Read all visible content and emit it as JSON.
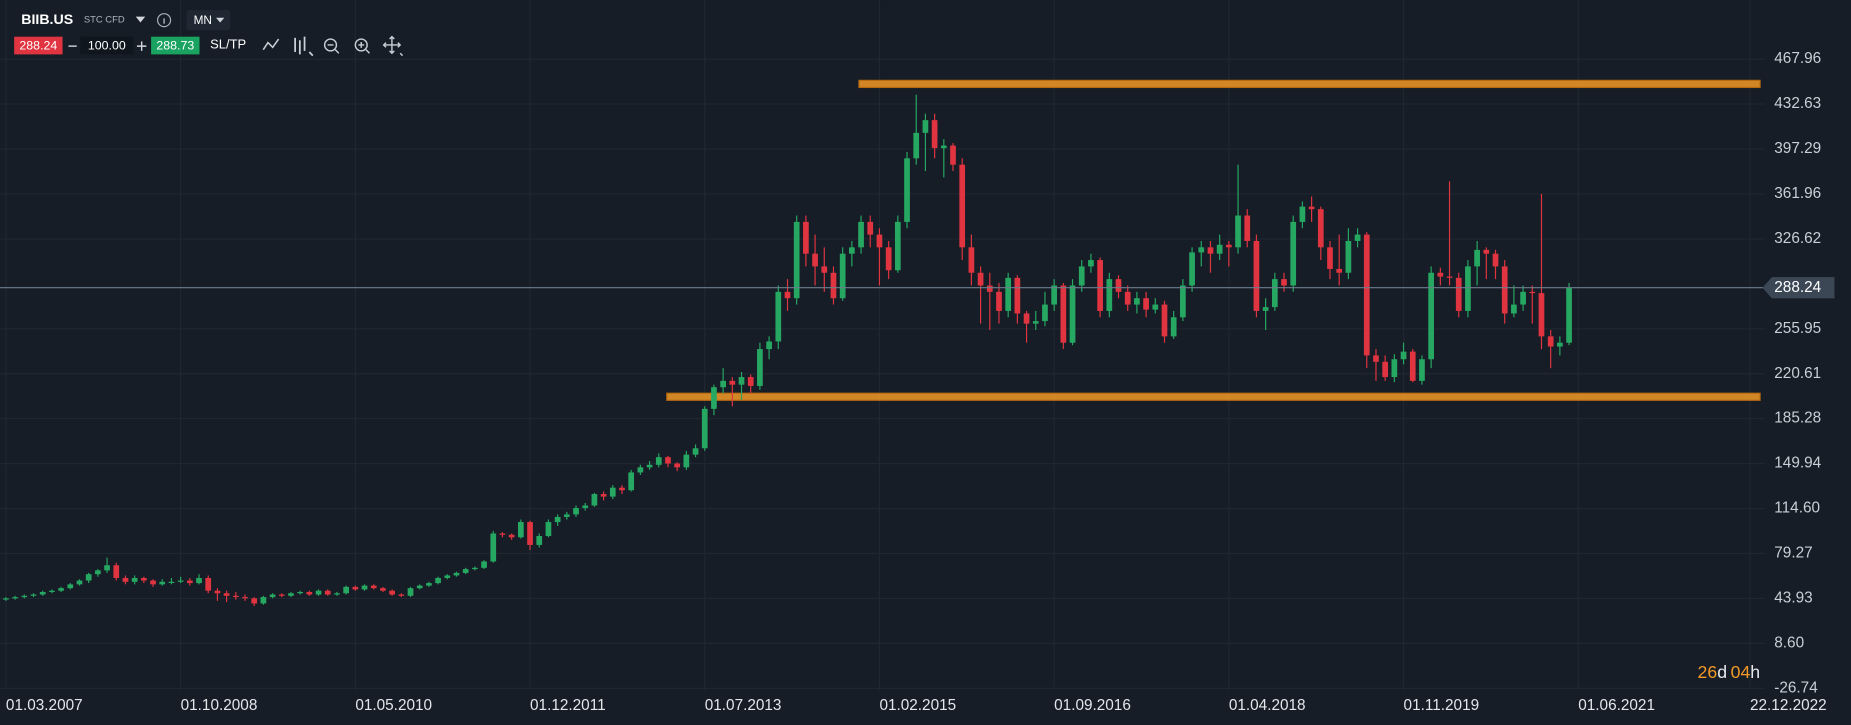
{
  "header": {
    "symbol": "BIIB.US",
    "instrument_type": "STC CFD",
    "timeframe": "MN",
    "sell_price": "288.24",
    "volume": "100.00",
    "buy_price": "288.73",
    "sltp": "SL/TP"
  },
  "countdown": [
    "26",
    "d",
    "04",
    "h"
  ],
  "chart_data": {
    "type": "candlestick",
    "up_color": "#26a862",
    "down_color": "#e03440",
    "x": [
      "01.03.2007",
      "01.04.2007",
      "01.05.2007",
      "01.06.2007",
      "01.07.2007",
      "01.08.2007",
      "01.09.2007",
      "01.10.2007",
      "01.11.2007",
      "01.12.2007",
      "01.01.2008",
      "01.02.2008",
      "01.03.2008",
      "01.04.2008",
      "01.05.2008",
      "01.06.2008",
      "01.07.2008",
      "01.08.2008",
      "01.09.2008",
      "01.10.2008",
      "01.11.2008",
      "01.12.2008",
      "01.01.2009",
      "01.02.2009",
      "01.03.2009",
      "01.04.2009",
      "01.05.2009",
      "01.06.2009",
      "01.07.2009",
      "01.08.2009",
      "01.09.2009",
      "01.10.2009",
      "01.11.2009",
      "01.12.2009",
      "01.01.2010",
      "01.02.2010",
      "01.03.2010",
      "01.04.2010",
      "01.05.2010",
      "01.06.2010",
      "01.07.2010",
      "01.08.2010",
      "01.09.2010",
      "01.10.2010",
      "01.11.2010",
      "01.12.2010",
      "01.01.2011",
      "01.02.2011",
      "01.03.2011",
      "01.04.2011",
      "01.05.2011",
      "01.06.2011",
      "01.07.2011",
      "01.08.2011",
      "01.09.2011",
      "01.10.2011",
      "01.11.2011",
      "01.12.2011",
      "01.01.2012",
      "01.02.2012",
      "01.03.2012",
      "01.04.2012",
      "01.05.2012",
      "01.06.2012",
      "01.07.2012",
      "01.08.2012",
      "01.09.2012",
      "01.10.2012",
      "01.11.2012",
      "01.12.2012",
      "01.01.2013",
      "01.02.2013",
      "01.03.2013",
      "01.04.2013",
      "01.05.2013",
      "01.06.2013",
      "01.07.2013",
      "01.08.2013",
      "01.09.2013",
      "01.10.2013",
      "01.11.2013",
      "01.12.2013",
      "01.01.2014",
      "01.02.2014",
      "01.03.2014",
      "01.04.2014",
      "01.05.2014",
      "01.06.2014",
      "01.07.2014",
      "01.08.2014",
      "01.09.2014",
      "01.10.2014",
      "01.11.2014",
      "01.12.2014",
      "01.01.2015",
      "01.02.2015",
      "01.03.2015",
      "01.04.2015",
      "01.05.2015",
      "01.06.2015",
      "01.07.2015",
      "01.08.2015",
      "01.09.2015",
      "01.10.2015",
      "01.11.2015",
      "01.12.2015",
      "01.01.2016",
      "01.02.2016",
      "01.03.2016",
      "01.04.2016",
      "01.05.2016",
      "01.06.2016",
      "01.07.2016",
      "01.08.2016",
      "01.09.2016",
      "01.10.2016",
      "01.11.2016",
      "01.12.2016",
      "01.01.2017",
      "01.02.2017",
      "01.03.2017",
      "01.04.2017",
      "01.05.2017",
      "01.06.2017",
      "01.07.2017",
      "01.08.2017",
      "01.09.2017",
      "01.10.2017",
      "01.11.2017",
      "01.12.2017",
      "01.01.2018",
      "01.02.2018",
      "01.03.2018",
      "01.04.2018",
      "01.05.2018",
      "01.06.2018",
      "01.07.2018",
      "01.08.2018",
      "01.09.2018",
      "01.10.2018",
      "01.11.2018",
      "01.12.2018",
      "01.01.2019",
      "01.02.2019",
      "01.03.2019",
      "01.04.2019",
      "01.05.2019",
      "01.06.2019",
      "01.07.2019",
      "01.08.2019",
      "01.09.2019",
      "01.10.2019",
      "01.11.2019",
      "01.12.2019",
      "01.01.2020",
      "01.02.2020",
      "01.03.2020",
      "01.04.2020",
      "01.05.2020",
      "01.06.2020",
      "01.07.2020",
      "01.08.2020",
      "01.09.2020",
      "01.10.2020",
      "01.11.2020",
      "01.12.2020",
      "01.01.2021",
      "01.02.2021",
      "01.03.2021",
      "01.04.2021",
      "01.05.2021"
    ],
    "ohlc": [
      [
        43,
        45,
        42,
        44
      ],
      [
        44,
        46,
        43,
        45
      ],
      [
        45,
        47,
        44,
        46
      ],
      [
        46,
        48,
        45,
        47
      ],
      [
        47,
        50,
        46,
        49
      ],
      [
        49,
        51,
        48,
        50
      ],
      [
        50,
        53,
        49,
        52
      ],
      [
        52,
        56,
        51,
        55
      ],
      [
        55,
        59,
        54,
        58
      ],
      [
        58,
        64,
        56,
        63
      ],
      [
        63,
        67,
        61,
        66
      ],
      [
        66,
        76,
        64,
        70
      ],
      [
        70,
        72,
        58,
        60
      ],
      [
        60,
        62,
        55,
        57
      ],
      [
        57,
        62,
        55,
        60
      ],
      [
        60,
        61,
        56,
        58
      ],
      [
        58,
        59,
        53,
        55
      ],
      [
        55,
        59,
        54,
        57
      ],
      [
        57,
        60,
        55,
        57
      ],
      [
        57,
        61,
        56,
        58
      ],
      [
        58,
        60,
        54,
        56
      ],
      [
        56,
        63,
        55,
        60
      ],
      [
        60,
        62,
        48,
        50
      ],
      [
        50,
        52,
        42,
        48
      ],
      [
        48,
        50,
        41,
        46
      ],
      [
        46,
        49,
        43,
        45
      ],
      [
        45,
        47,
        42,
        44
      ],
      [
        44,
        45,
        38,
        40
      ],
      [
        40,
        46,
        39,
        45
      ],
      [
        45,
        48,
        44,
        47
      ],
      [
        47,
        48,
        45,
        46
      ],
      [
        46,
        49,
        45,
        48
      ],
      [
        48,
        50,
        47,
        49
      ],
      [
        49,
        50,
        46,
        47
      ],
      [
        47,
        51,
        46,
        50
      ],
      [
        50,
        51,
        46,
        47
      ],
      [
        47,
        49,
        46,
        48
      ],
      [
        48,
        54,
        47,
        53
      ],
      [
        53,
        54,
        50,
        51
      ],
      [
        51,
        55,
        50,
        54
      ],
      [
        54,
        55,
        51,
        52
      ],
      [
        52,
        53,
        49,
        50
      ],
      [
        50,
        51,
        46,
        47
      ],
      [
        47,
        48,
        45,
        46
      ],
      [
        46,
        53,
        45,
        52
      ],
      [
        52,
        55,
        51,
        54
      ],
      [
        54,
        57,
        53,
        56
      ],
      [
        56,
        61,
        55,
        60
      ],
      [
        60,
        63,
        59,
        62
      ],
      [
        62,
        65,
        61,
        64
      ],
      [
        64,
        68,
        63,
        67
      ],
      [
        67,
        69,
        66,
        68
      ],
      [
        68,
        74,
        67,
        73
      ],
      [
        73,
        97,
        72,
        95
      ],
      [
        95,
        96,
        92,
        94
      ],
      [
        94,
        95,
        90,
        92
      ],
      [
        92,
        106,
        91,
        104
      ],
      [
        104,
        105,
        82,
        86
      ],
      [
        86,
        95,
        84,
        93
      ],
      [
        93,
        106,
        92,
        104
      ],
      [
        104,
        110,
        101,
        108
      ],
      [
        108,
        112,
        106,
        110
      ],
      [
        110,
        117,
        108,
        115
      ],
      [
        115,
        119,
        113,
        117
      ],
      [
        117,
        127,
        116,
        126
      ],
      [
        126,
        128,
        121,
        124
      ],
      [
        124,
        133,
        122,
        131
      ],
      [
        131,
        133,
        126,
        129
      ],
      [
        129,
        145,
        128,
        143
      ],
      [
        143,
        149,
        141,
        147
      ],
      [
        147,
        152,
        145,
        149
      ],
      [
        149,
        158,
        147,
        155
      ],
      [
        155,
        156,
        147,
        150
      ],
      [
        150,
        151,
        144,
        147
      ],
      [
        147,
        160,
        145,
        157
      ],
      [
        157,
        165,
        155,
        162
      ],
      [
        162,
        195,
        160,
        193
      ],
      [
        193,
        212,
        188,
        210
      ],
      [
        210,
        225,
        205,
        215
      ],
      [
        215,
        218,
        195,
        212
      ],
      [
        212,
        222,
        200,
        218
      ],
      [
        218,
        220,
        205,
        211
      ],
      [
        211,
        245,
        208,
        240
      ],
      [
        240,
        250,
        232,
        246
      ],
      [
        246,
        290,
        240,
        285
      ],
      [
        285,
        295,
        270,
        280
      ],
      [
        280,
        345,
        275,
        340
      ],
      [
        340,
        345,
        305,
        315
      ],
      [
        315,
        330,
        290,
        305
      ],
      [
        305,
        320,
        285,
        300
      ],
      [
        300,
        305,
        275,
        280
      ],
      [
        280,
        320,
        278,
        315
      ],
      [
        315,
        325,
        305,
        320
      ],
      [
        320,
        345,
        315,
        340
      ],
      [
        340,
        345,
        320,
        330
      ],
      [
        330,
        335,
        290,
        320
      ],
      [
        320,
        325,
        295,
        302
      ],
      [
        302,
        345,
        300,
        340
      ],
      [
        340,
        395,
        335,
        390
      ],
      [
        390,
        440,
        385,
        410
      ],
      [
        410,
        425,
        380,
        420
      ],
      [
        420,
        425,
        390,
        398
      ],
      [
        398,
        405,
        375,
        400
      ],
      [
        400,
        402,
        380,
        385
      ],
      [
        385,
        390,
        310,
        320
      ],
      [
        320,
        330,
        290,
        300
      ],
      [
        300,
        305,
        260,
        290
      ],
      [
        290,
        300,
        255,
        285
      ],
      [
        285,
        292,
        260,
        270
      ],
      [
        270,
        300,
        265,
        296
      ],
      [
        296,
        298,
        260,
        268
      ],
      [
        268,
        270,
        245,
        260
      ],
      [
        260,
        270,
        255,
        262
      ],
      [
        262,
        285,
        258,
        275
      ],
      [
        275,
        295,
        270,
        290
      ],
      [
        290,
        292,
        240,
        245
      ],
      [
        245,
        295,
        243,
        290
      ],
      [
        290,
        310,
        285,
        305
      ],
      [
        305,
        315,
        300,
        310
      ],
      [
        310,
        312,
        265,
        270
      ],
      [
        270,
        300,
        265,
        295
      ],
      [
        295,
        298,
        280,
        285
      ],
      [
        285,
        290,
        270,
        275
      ],
      [
        275,
        285,
        268,
        280
      ],
      [
        280,
        285,
        265,
        271
      ],
      [
        271,
        280,
        268,
        275
      ],
      [
        275,
        278,
        245,
        250
      ],
      [
        250,
        270,
        248,
        265
      ],
      [
        265,
        295,
        262,
        290
      ],
      [
        290,
        320,
        285,
        316
      ],
      [
        316,
        325,
        305,
        320
      ],
      [
        320,
        325,
        300,
        315
      ],
      [
        315,
        330,
        310,
        322
      ],
      [
        322,
        325,
        305,
        320
      ],
      [
        320,
        385,
        315,
        345
      ],
      [
        345,
        350,
        320,
        325
      ],
      [
        325,
        330,
        265,
        270
      ],
      [
        270,
        280,
        255,
        273
      ],
      [
        273,
        300,
        270,
        295
      ],
      [
        295,
        300,
        285,
        290
      ],
      [
        290,
        345,
        285,
        340
      ],
      [
        340,
        356,
        335,
        352
      ],
      [
        352,
        360,
        340,
        350
      ],
      [
        350,
        352,
        310,
        320
      ],
      [
        320,
        325,
        295,
        303
      ],
      [
        303,
        330,
        290,
        300
      ],
      [
        300,
        335,
        295,
        325
      ],
      [
        325,
        335,
        320,
        330
      ],
      [
        330,
        332,
        225,
        235
      ],
      [
        235,
        240,
        215,
        230
      ],
      [
        230,
        235,
        215,
        218
      ],
      [
        218,
        236,
        214,
        232
      ],
      [
        232,
        245,
        228,
        238
      ],
      [
        238,
        240,
        214,
        215
      ],
      [
        215,
        235,
        212,
        232
      ],
      [
        232,
        305,
        225,
        300
      ],
      [
        300,
        304,
        290,
        297
      ],
      [
        297,
        372,
        290,
        296
      ],
      [
        296,
        300,
        265,
        270
      ],
      [
        270,
        310,
        265,
        305
      ],
      [
        305,
        325,
        290,
        318
      ],
      [
        318,
        320,
        295,
        315
      ],
      [
        315,
        318,
        295,
        305
      ],
      [
        305,
        310,
        260,
        268
      ],
      [
        268,
        290,
        265,
        275
      ],
      [
        275,
        290,
        270,
        285
      ],
      [
        285,
        290,
        260,
        284
      ],
      [
        284,
        362,
        240,
        250
      ],
      [
        250,
        255,
        225,
        242
      ],
      [
        242,
        250,
        235,
        245
      ],
      [
        245,
        292,
        243,
        288.24
      ]
    ],
    "current_price": 288.24,
    "levels": [
      {
        "value": 448.5,
        "start": "25.11.2014",
        "end": "25.01.2023"
      },
      {
        "value": 202.5,
        "start": "28.02.2013",
        "end": "25.01.2023"
      }
    ],
    "ylim": [
      -28.6,
      514.4
    ],
    "yticks": [
      467.96,
      432.63,
      397.29,
      361.96,
      326.62,
      255.95,
      220.61,
      185.28,
      149.94,
      {
        "value": 114.6,
        "label": "114.60"
      },
      79.27,
      43.93,
      {
        "value": 8.6,
        "label": "8.60"
      },
      -26.74
    ],
    "xlim": [
      "12.02.2007",
      "10.02.2023"
    ],
    "xticks": [
      "01.03.2007",
      "01.10.2008",
      "01.05.2010",
      "01.12.2011",
      "01.07.2013",
      "01.02.2015",
      "01.09.2016",
      "01.04.2018",
      "01.11.2019",
      "01.06.2021",
      "22.12.2022"
    ],
    "grid": true
  }
}
